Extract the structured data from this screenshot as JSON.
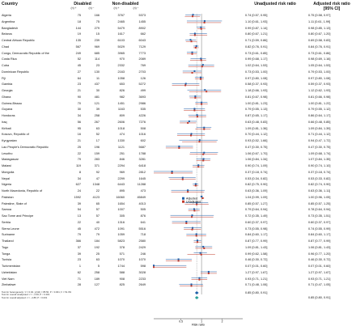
{
  "headers": {
    "country": "Country",
    "disabled": "Disabled",
    "non_disabled": "Non-disabled",
    "unadjusted": "Unadjusted risk ratio",
    "adjusted": "Adjusted risk ratio",
    "ci": "[95% CI]",
    "sub_n": "(n) +",
    "sub_n2": "(n) −",
    "sub_n3": "(n) +",
    "sub_n4": "(n) −"
  },
  "legend": {
    "adjusted": "Adjusted",
    "unadjusted": "Unadjusted"
  },
  "axis": {
    "label": "Risk ratio",
    "ticks": [
      "0.5",
      "1",
      "2"
    ]
  },
  "colors": {
    "adjusted": "#1f5fa8",
    "unadjusted": "#c0392b",
    "pooled": "#2aa198"
  },
  "rows": [
    {
      "c": "Algeria",
      "d1": "75",
      "d2": "166",
      "n1": "3767",
      "n2": "5373",
      "u": "0.74 [0.57, 0.95]",
      "a": "0.75 [0.58, 0.97]",
      "uv": 0.74,
      "ul": 0.57,
      "uh": 0.95,
      "av": 0.75,
      "al": 0.58,
      "ah": 0.97
    },
    {
      "c": "Argentina",
      "d1": "18",
      "d2": "75",
      "n1": "2465",
      "n2": "1455",
      "u": "1.10 [0.61, 1.93]",
      "a": "1.11 [0.61, 1.99]",
      "uv": 1.1,
      "ul": 0.61,
      "uh": 1.93,
      "av": 1.11,
      "al": 0.61,
      "ah": 1.99
    },
    {
      "c": "Bangladesh",
      "d1": "144",
      "d2": "279",
      "n1": "5479",
      "n2": "8902",
      "u": "0.99 [0.87, 1.14]",
      "a": "0.98 [0.85, 1.13]",
      "uv": 0.99,
      "ul": 0.87,
      "uh": 1.14,
      "av": 0.98,
      "al": 0.85,
      "ah": 1.13
    },
    {
      "c": "Belarus",
      "d1": "19",
      "d2": "15",
      "n1": "1617",
      "n2": "662",
      "u": "0.80 [0.67, 1.21]",
      "a": "0.80 [0.67, 1.20]",
      "uv": 0.8,
      "ul": 0.67,
      "uh": 1.21,
      "av": 0.8,
      "al": 0.67,
      "ah": 1.2
    },
    {
      "c": "Central African Republic",
      "d1": "135",
      "d2": "239",
      "n1": "6103",
      "n2": "6043",
      "u": "0.71 [0.59, 0.86]",
      "a": "0.69 [0.58, 0.83]",
      "uv": 0.71,
      "ul": 0.59,
      "uh": 0.86,
      "av": 0.69,
      "al": 0.58,
      "ah": 0.83
    },
    {
      "c": "Chad",
      "d1": "567",
      "d2": "969",
      "n1": "5029",
      "n2": "7129",
      "u": "0.82 [0.76, 0.91]",
      "a": "0.84 [0.76, 0.91]",
      "uv": 0.82,
      "ul": 0.76,
      "uh": 0.91,
      "av": 0.84,
      "al": 0.76,
      "ah": 0.91
    },
    {
      "c": "Congo, Democratic Republic of the",
      "d1": "249",
      "d2": "685",
      "n1": "3965",
      "n2": "7773",
      "u": "0.73 [0.61, 0.85]",
      "a": "0.73 [0.61, 0.86]",
      "uv": 0.73,
      "ul": 0.61,
      "uh": 0.85,
      "av": 0.73,
      "al": 0.61,
      "ah": 0.86
    },
    {
      "c": "Costa Rica",
      "d1": "52",
      "d2": "114",
      "n1": "970",
      "n2": "2089",
      "u": "0.99 [0.68, 1.17]",
      "a": "0.98 [0.69, 1.16]",
      "uv": 0.99,
      "ul": 0.68,
      "uh": 1.17,
      "av": 0.98,
      "al": 0.69,
      "ah": 1.16
    },
    {
      "c": "Cuba",
      "d1": "45",
      "d2": "23",
      "n1": "2332",
      "n2": "769",
      "u": "1.02 [0.64, 1.53]",
      "a": "1.05 [0.64, 1.53]",
      "uv": 1.02,
      "ul": 0.64,
      "uh": 1.53,
      "av": 1.05,
      "al": 0.64,
      "ah": 1.53
    },
    {
      "c": "Dominican Republic",
      "d1": "27",
      "d2": "130",
      "n1": "2163",
      "n2": "2703",
      "u": "0.73 [0.53, 1.00]",
      "a": "0.79 [0.53, 1.00]",
      "uv": 0.73,
      "ul": 0.53,
      "uh": 1.0,
      "av": 0.79,
      "al": 0.53,
      "ah": 1.0
    },
    {
      "c": "Fiji",
      "d1": "64",
      "d2": "11",
      "n1": "1058",
      "n2": "126",
      "u": "0.97 [0.80, 1.08]",
      "a": "0.97 [0.80, 1.08]",
      "uv": 0.97,
      "ul": 0.8,
      "uh": 1.08,
      "av": 0.97,
      "al": 0.8,
      "ah": 1.08
    },
    {
      "c": "Gambia",
      "d1": "23",
      "d2": "437",
      "n1": "653",
      "n2": "5272",
      "u": "0.58 [0.37, 0.93]",
      "a": "0.59 [0.37, 0.93]",
      "uv": 0.58,
      "ul": 0.37,
      "uh": 0.93,
      "av": 0.59,
      "al": 0.37,
      "ah": 0.93
    },
    {
      "c": "Georgia",
      "d1": "21",
      "d2": "30",
      "n1": "826",
      "n2": "499",
      "u": "1.18 [0.66, 1.93]",
      "a": "1.12 [0.62, 1.93]",
      "uv": 1.18,
      "ul": 0.66,
      "uh": 1.93,
      "av": 1.12,
      "al": 0.62,
      "ah": 1.93
    },
    {
      "c": "Ghana",
      "d1": "90",
      "d2": "481",
      "n1": "982",
      "n2": "3693",
      "u": "0.81 [0.67, 0.98]",
      "a": "0.81 [0.66, 0.98]",
      "uv": 0.81,
      "ul": 0.67,
      "uh": 0.98,
      "av": 0.81,
      "al": 0.66,
      "ah": 0.98
    },
    {
      "c": "Guinea-Bissau",
      "d1": "70",
      "d2": "121",
      "n1": "1451",
      "n2": "2986",
      "u": "1.00 [0.81, 1.23]",
      "a": "1.00 [0.81, 1.22]",
      "uv": 1.0,
      "ul": 0.81,
      "uh": 1.23,
      "av": 1.0,
      "al": 0.81,
      "ah": 1.22
    },
    {
      "c": "Guyana",
      "d1": "30",
      "d2": "39",
      "n1": "1163",
      "n2": "535",
      "u": "0.79 [0.55, 1.13]",
      "a": "0.79 [0.55, 1.12]",
      "uv": 0.79,
      "ul": 0.55,
      "uh": 1.13,
      "av": 0.79,
      "al": 0.55,
      "ah": 1.12
    },
    {
      "c": "Honduras",
      "d1": "34",
      "d2": "258",
      "n1": "809",
      "n2": "4226",
      "u": "0.87 [0.65, 1.17]",
      "a": "0.86 [0.64, 1.17]",
      "uv": 0.87,
      "ul": 0.65,
      "uh": 1.17,
      "av": 0.86,
      "al": 0.64,
      "ah": 1.17
    },
    {
      "c": "Iraq",
      "d1": "56",
      "d2": "267",
      "n1": "2606",
      "n2": "7276",
      "u": "0.63 [0.48, 0.83]",
      "a": "0.66 [0.48, 0.85]",
      "uv": 0.63,
      "ul": 0.48,
      "uh": 0.83,
      "av": 0.66,
      "al": 0.48,
      "ah": 0.85
    },
    {
      "c": "Kiribati",
      "d1": "95",
      "d2": "63",
      "n1": "1018",
      "n2": "508",
      "u": "1.09 [0.81, 1.36]",
      "a": "1.09 [0.84, 1.39]",
      "uv": 1.09,
      "ul": 0.81,
      "uh": 1.36,
      "av": 1.09,
      "al": 0.84,
      "ah": 1.39
    },
    {
      "c": "Kosovo, Republic of",
      "d1": "16",
      "d2": "52",
      "n1": "474",
      "n2": "1016",
      "u": "0.70 [0.44, 1.12]",
      "a": "0.71 [0.44, 1.12]",
      "uv": 0.7,
      "ul": 0.44,
      "uh": 1.12,
      "av": 0.71,
      "al": 0.44,
      "ah": 1.12
    },
    {
      "c": "Kyrgyzstan",
      "d1": "21",
      "d2": "17",
      "n1": "1330",
      "n2": "602",
      "u": "0.93 [0.52, 1.66]",
      "a": "0.94 [0.47, 1.72]",
      "uv": 0.93,
      "ul": 0.52,
      "uh": 1.66,
      "av": 0.94,
      "al": 0.47,
      "ah": 1.72
    },
    {
      "c": "Lao People's Democratic Republic",
      "d1": "25",
      "d2": "196",
      "n1": "1121",
      "n2": "5687",
      "u": "0.47 [0.30, 0.75]",
      "a": "0.47 [0.30, 0.75]",
      "uv": 0.47,
      "ul": 0.3,
      "uh": 0.75,
      "av": 0.47,
      "al": 0.3,
      "ah": 0.75
    },
    {
      "c": "Lesotho",
      "d1": "22",
      "d2": "159",
      "n1": "251",
      "n2": "1788",
      "u": "1.06 [0.67, 1.70]",
      "a": "1.09 [0.68, 1.74]",
      "uv": 1.06,
      "ul": 0.67,
      "uh": 1.7,
      "av": 1.09,
      "al": 0.68,
      "ah": 1.74
    },
    {
      "c": "Madagascar",
      "d1": "79",
      "d2": "283",
      "n1": "846",
      "n2": "3281",
      "u": "1.06 [0.84, 1.34]",
      "a": "1.07 [0.84, 1.35]",
      "uv": 1.06,
      "ul": 0.84,
      "uh": 1.34,
      "av": 1.07,
      "al": 0.84,
      "ah": 1.35
    },
    {
      "c": "Malawi",
      "d1": "119",
      "d2": "371",
      "n1": "2294",
      "n2": "6418",
      "u": "0.90 [0.74, 1.09]",
      "a": "0.90 [0.74, 1.10]",
      "uv": 0.9,
      "ul": 0.74,
      "uh": 1.09,
      "av": 0.9,
      "al": 0.74,
      "ah": 1.1
    },
    {
      "c": "Mongolia",
      "d1": "8",
      "d2": "92",
      "n1": "969",
      "n2": "2812",
      "u": "0.37 [0.18, 0.74]",
      "a": "0.37 [0.18, 0.74]",
      "uv": 0.37,
      "ul": 0.18,
      "uh": 0.74,
      "av": 0.37,
      "al": 0.18,
      "ah": 0.74
    },
    {
      "c": "Nepal",
      "d1": "34",
      "d2": "47",
      "n1": "2299",
      "n2": "1645",
      "u": "0.53 [0.34, 0.82]",
      "a": "0.53 [0.33, 0.82]",
      "uv": 0.53,
      "ul": 0.34,
      "uh": 0.82,
      "av": 0.53,
      "al": 0.33,
      "ah": 0.82
    },
    {
      "c": "Nigeria",
      "d1": "627",
      "d2": "1348",
      "n1": "6443",
      "n2": "11288",
      "u": "0.82 [0.75, 0.90]",
      "a": "0.82 [0.74, 0.90]",
      "uv": 0.82,
      "ul": 0.75,
      "uh": 0.9,
      "av": 0.82,
      "al": 0.74,
      "ah": 0.9
    },
    {
      "c": "North Macedonia, Republic of",
      "d1": "24",
      "d2": "22",
      "n1": "895",
      "n2": "473",
      "u": "0.63 [0.36, 1.09]",
      "a": "0.63 [0.36, 1.11]",
      "uv": 0.63,
      "ul": 0.36,
      "uh": 1.09,
      "av": 0.63,
      "al": 0.36,
      "ah": 1.11
    },
    {
      "c": "Pakistan",
      "d1": "1592",
      "d2": "4123",
      "n1": "16060",
      "n2": "45849",
      "u": "1.04 [0.99, 1.09]",
      "a": "1.00 [0.96, 1.05]",
      "uv": 1.04,
      "ul": 0.99,
      "uh": 1.09,
      "av": 1.0,
      "al": 0.96,
      "ah": 1.05
    },
    {
      "c": "Palestine, State of",
      "d1": "39",
      "d2": "65",
      "n1": "1654",
      "n2": "4013",
      "u": "0.85 [0.57, 1.27]",
      "a": "0.85 [0.57, 1.25]",
      "uv": 0.85,
      "ul": 0.57,
      "uh": 1.27,
      "av": 0.85,
      "al": 0.57,
      "ah": 1.25
    },
    {
      "c": "Samoa",
      "d1": "54",
      "d2": "57",
      "n1": "1007",
      "n2": "505",
      "u": "0.79 [0.64, 0.94]",
      "a": "0.78 [0.64, 0.94]",
      "uv": 0.79,
      "ul": 0.64,
      "uh": 0.94,
      "av": 0.78,
      "al": 0.64,
      "ah": 0.94
    },
    {
      "c": "Sao Tome and Principe",
      "d1": "13",
      "d2": "57",
      "n1": "305",
      "n2": "876",
      "u": "0.72 [0.35, 1.49]",
      "a": "0.73 [0.35, 1.51]",
      "uv": 0.72,
      "ul": 0.35,
      "uh": 1.49,
      "av": 0.73,
      "al": 0.35,
      "ah": 1.51
    },
    {
      "c": "Serbia",
      "d1": "22",
      "d2": "40",
      "n1": "1316",
      "n2": "641",
      "u": "0.60 [0.37, 0.97]",
      "a": "0.60 [0.37, 0.97]",
      "uv": 0.6,
      "ul": 0.37,
      "uh": 0.97,
      "av": 0.6,
      "al": 0.37,
      "ah": 0.97
    },
    {
      "c": "Sierra Leone",
      "d1": "45",
      "d2": "472",
      "n1": "1091",
      "n2": "5516",
      "u": "0.73 [0.55, 0.98]",
      "a": "0.74 [0.55, 0.99]",
      "uv": 0.73,
      "ul": 0.55,
      "uh": 0.98,
      "av": 0.74,
      "al": 0.55,
      "ah": 0.99
    },
    {
      "c": "Suriname",
      "d1": "79",
      "d2": "79",
      "n1": "1059",
      "n2": "718",
      "u": "0.84 [0.60, 1.17]",
      "a": "0.84 [0.60, 1.17]",
      "uv": 0.84,
      "ul": 0.6,
      "uh": 1.17,
      "av": 0.84,
      "al": 0.6,
      "ah": 1.17
    },
    {
      "c": "Thailand",
      "d1": "366",
      "d2": "184",
      "n1": "5823",
      "n2": "2580",
      "u": "0.87 [0.77, 0.99]",
      "a": "0.87 [0.77, 0.99]",
      "uv": 0.87,
      "ul": 0.77,
      "uh": 0.99,
      "av": 0.87,
      "al": 0.77,
      "ah": 0.99
    },
    {
      "c": "Togo",
      "d1": "37",
      "d2": "192",
      "n1": "378",
      "n2": "2429",
      "u": "1.09 [0.81, 1.43]",
      "a": "1.06 [0.81, 1.43]",
      "uv": 1.09,
      "ul": 0.81,
      "uh": 1.43,
      "av": 1.06,
      "al": 0.81,
      "ah": 1.43
    },
    {
      "c": "Tonga",
      "d1": "39",
      "d2": "25",
      "n1": "571",
      "n2": "246",
      "u": "0.99 [0.62, 1.58]",
      "a": "0.96 [0.77, 1.20]",
      "uv": 0.99,
      "ul": 0.62,
      "uh": 1.58,
      "av": 0.96,
      "al": 0.77,
      "ah": 1.2
    },
    {
      "c": "Tunisia",
      "d1": "23",
      "d2": "63",
      "n1": "1070",
      "n2": "1070",
      "u": "0.46 [0.30, 0.72]",
      "a": "0.46 [0.30, 0.72]",
      "uv": 0.46,
      "ul": 0.3,
      "uh": 0.72,
      "av": 0.46,
      "al": 0.3,
      "ah": 0.72
    },
    {
      "c": "Turkmenistan",
      "d1": "1",
      "d2": "5",
      "n1": "1744",
      "n2": "598",
      "u": "0.07 [0.01, 0.60]",
      "a": "0.07 [0.01, 0.60]",
      "uv": 0.07,
      "ul": 0.01,
      "uh": 0.6,
      "av": 0.07,
      "al": 0.01,
      "ah": 0.6
    },
    {
      "c": "Uzbekistan",
      "d1": "62",
      "d2": "258",
      "n1": "588",
      "n2": "3028",
      "u": "1.27 [0.97, 1.67]",
      "a": "1.27 [0.97, 1.67]",
      "uv": 1.27,
      "ul": 0.97,
      "uh": 1.67,
      "av": 1.27,
      "al": 0.97,
      "ah": 1.67
    },
    {
      "c": "Viet Nam",
      "d1": "71",
      "d2": "189",
      "n1": "908",
      "n2": "2233",
      "u": "0.93 [0.71, 1.21]",
      "a": "0.93 [0.71, 1.21]",
      "uv": 0.93,
      "ul": 0.71,
      "uh": 1.21,
      "av": 0.93,
      "al": 0.71,
      "ah": 1.21
    },
    {
      "c": "Zimbabwe",
      "d1": "28",
      "d2": "127",
      "n1": "825",
      "n2": "2649",
      "u": "0.71 [0.48, 1.06]",
      "a": "0.71 [0.47, 1.05]",
      "uv": 0.71,
      "ul": 0.48,
      "uh": 1.06,
      "av": 0.71,
      "al": 0.47,
      "ah": 1.05
    }
  ],
  "pooled": {
    "u": "0.85 [0.80, 0.91]",
    "a": "0.85 [0.80, 0.91]",
    "uv": 0.85,
    "ul": 0.8,
    "uh": 0.91,
    "av": 0.85,
    "al": 0.8,
    "ah": 0.91
  },
  "footnotes": [
    "Test for heterogeneity: τ² = 0.02, χ²(42) = 85.50, P < 0.001; I² = 51.3%",
    "Test for overall unadjusted: z = −4.93, P < 0.001",
    "Test for overall adjusted: z = −4.88, P < 0.001"
  ]
}
